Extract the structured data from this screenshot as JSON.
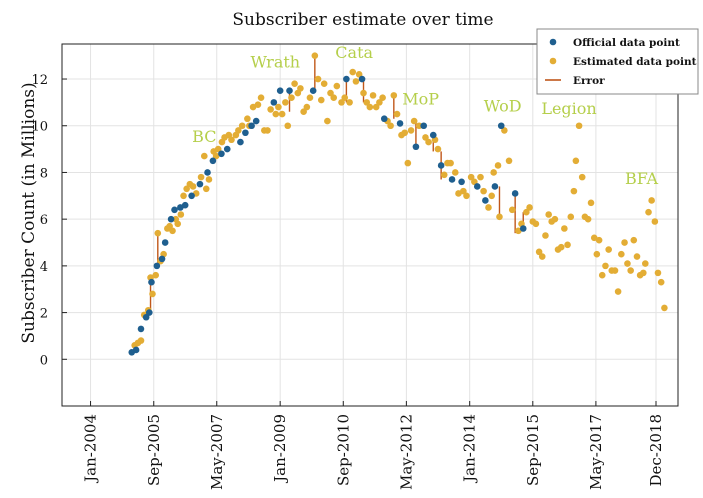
{
  "chart_data": {
    "type": "scatter",
    "title": "Subscriber estimate over time",
    "xlabel": "",
    "ylabel": "Subscriber Count (in Millions)",
    "ylim": [
      -2,
      13.5
    ],
    "yticks": [
      0,
      2,
      4,
      6,
      8,
      10,
      12
    ],
    "xlim": [
      "2003-04-01",
      "2019-07-01"
    ],
    "xticks": [
      {
        "date": "2004-01-01",
        "label": "Jan-2004"
      },
      {
        "date": "2005-09-01",
        "label": "Sep-2005"
      },
      {
        "date": "2007-05-01",
        "label": "May-2007"
      },
      {
        "date": "2009-01-01",
        "label": "Jan-2009"
      },
      {
        "date": "2010-09-01",
        "label": "Sep-2010"
      },
      {
        "date": "2012-05-01",
        "label": "May-2012"
      },
      {
        "date": "2014-01-01",
        "label": "Jan-2014"
      },
      {
        "date": "2015-09-01",
        "label": "Sep-2015"
      },
      {
        "date": "2017-05-01",
        "label": "May-2017"
      },
      {
        "date": "2018-12-01",
        "label": "Dec-2018"
      }
    ],
    "grid": true,
    "legend": {
      "position": "top-right",
      "entries": [
        {
          "label": "Official data point",
          "kind": "official"
        },
        {
          "label": "Estimated data point",
          "kind": "estimated"
        },
        {
          "label": "Error",
          "kind": "error"
        }
      ]
    },
    "colors": {
      "official": "#1f5f8f",
      "estimated": "#e3ad35",
      "error": "#c0571a",
      "annotation": "#b5cf4b"
    },
    "annotations": [
      {
        "text": "BC",
        "date": "2007-01-01",
        "y": 9.3
      },
      {
        "text": "Wrath",
        "date": "2008-11-15",
        "y": 12.5
      },
      {
        "text": "Cata",
        "date": "2010-12-15",
        "y": 12.9
      },
      {
        "text": "MoP",
        "date": "2012-09-15",
        "y": 10.9
      },
      {
        "text": "WoD",
        "date": "2014-11-15",
        "y": 10.6
      },
      {
        "text": "Legion",
        "date": "2016-08-15",
        "y": 10.5
      },
      {
        "text": "BFA",
        "date": "2018-07-15",
        "y": 7.5
      }
    ],
    "series": [
      {
        "name": "Official data point",
        "kind": "official",
        "points": [
          [
            "2005-02-01",
            0.3
          ],
          [
            "2005-03-15",
            0.4
          ],
          [
            "2005-05-01",
            1.3
          ],
          [
            "2005-06-20",
            1.8
          ],
          [
            "2005-07-20",
            2.0
          ],
          [
            "2005-08-10",
            3.3
          ],
          [
            "2005-10-01",
            4.0
          ],
          [
            "2005-11-20",
            4.3
          ],
          [
            "2005-12-20",
            5.0
          ],
          [
            "2006-02-15",
            6.0
          ],
          [
            "2006-03-20",
            6.4
          ],
          [
            "2006-05-15",
            6.5
          ],
          [
            "2006-07-01",
            6.6
          ],
          [
            "2006-09-01",
            7.0
          ],
          [
            "2006-11-20",
            7.5
          ],
          [
            "2007-02-01",
            8.0
          ],
          [
            "2007-03-25",
            8.5
          ],
          [
            "2007-06-15",
            8.8
          ],
          [
            "2007-08-10",
            9.0
          ],
          [
            "2007-12-15",
            9.3
          ],
          [
            "2008-02-01",
            9.7
          ],
          [
            "2008-04-01",
            10.0
          ],
          [
            "2008-05-15",
            10.2
          ],
          [
            "2008-11-01",
            11.0
          ],
          [
            "2009-01-01",
            11.5
          ],
          [
            "2009-04-01",
            11.5
          ],
          [
            "2009-11-15",
            11.5
          ],
          [
            "2010-10-01",
            12.0
          ],
          [
            "2011-03-01",
            12.0
          ],
          [
            "2011-10-01",
            10.3
          ],
          [
            "2012-03-01",
            10.1
          ],
          [
            "2012-08-01",
            9.1
          ],
          [
            "2012-10-15",
            10.0
          ],
          [
            "2013-01-15",
            9.6
          ],
          [
            "2013-04-01",
            8.3
          ],
          [
            "2013-07-15",
            7.7
          ],
          [
            "2013-10-15",
            7.6
          ],
          [
            "2014-03-15",
            7.4
          ],
          [
            "2014-06-01",
            6.8
          ],
          [
            "2014-09-01",
            7.4
          ],
          [
            "2014-11-01",
            10.0
          ],
          [
            "2015-03-15",
            7.1
          ],
          [
            "2015-06-01",
            5.6
          ]
        ]
      },
      {
        "name": "Estimated data point",
        "kind": "estimated",
        "points": [
          [
            "2005-03-01",
            0.6
          ],
          [
            "2005-04-01",
            0.7
          ],
          [
            "2005-05-01",
            0.8
          ],
          [
            "2005-06-01",
            1.9
          ],
          [
            "2005-07-10",
            2.1
          ],
          [
            "2005-08-01",
            3.5
          ],
          [
            "2005-08-20",
            2.8
          ],
          [
            "2005-09-20",
            3.6
          ],
          [
            "2005-10-10",
            5.4
          ],
          [
            "2005-11-05",
            4.2
          ],
          [
            "2005-12-05",
            4.5
          ],
          [
            "2006-01-10",
            5.6
          ],
          [
            "2006-02-01",
            5.7
          ],
          [
            "2006-03-01",
            5.5
          ],
          [
            "2006-04-01",
            6.0
          ],
          [
            "2006-04-20",
            5.8
          ],
          [
            "2006-05-20",
            6.2
          ],
          [
            "2006-06-15",
            7.0
          ],
          [
            "2006-07-15",
            7.3
          ],
          [
            "2006-08-15",
            7.5
          ],
          [
            "2006-09-15",
            7.4
          ],
          [
            "2006-10-15",
            7.1
          ],
          [
            "2006-12-01",
            7.8
          ],
          [
            "2007-01-01",
            8.7
          ],
          [
            "2007-01-20",
            7.3
          ],
          [
            "2007-02-15",
            7.7
          ],
          [
            "2007-04-01",
            8.9
          ],
          [
            "2007-04-25",
            8.7
          ],
          [
            "2007-05-15",
            9.0
          ],
          [
            "2007-06-20",
            9.3
          ],
          [
            "2007-07-15",
            9.5
          ],
          [
            "2007-08-25",
            9.6
          ],
          [
            "2007-09-20",
            9.4
          ],
          [
            "2007-11-01",
            9.6
          ],
          [
            "2007-11-25",
            9.8
          ],
          [
            "2008-01-01",
            10.0
          ],
          [
            "2008-02-20",
            10.3
          ],
          [
            "2008-03-10",
            10.0
          ],
          [
            "2008-04-15",
            10.8
          ],
          [
            "2008-06-01",
            10.9
          ],
          [
            "2008-07-01",
            11.2
          ],
          [
            "2008-08-01",
            9.8
          ],
          [
            "2008-09-01",
            9.8
          ],
          [
            "2008-10-01",
            10.7
          ],
          [
            "2008-11-20",
            10.5
          ],
          [
            "2008-12-15",
            10.8
          ],
          [
            "2009-01-20",
            10.5
          ],
          [
            "2009-02-20",
            11.0
          ],
          [
            "2009-03-15",
            10.0
          ],
          [
            "2009-04-20",
            11.2
          ],
          [
            "2009-05-20",
            11.8
          ],
          [
            "2009-06-20",
            11.4
          ],
          [
            "2009-07-15",
            11.6
          ],
          [
            "2009-08-15",
            10.6
          ],
          [
            "2009-09-15",
            10.8
          ],
          [
            "2009-10-15",
            11.2
          ],
          [
            "2009-12-01",
            13.0
          ],
          [
            "2010-01-01",
            12.0
          ],
          [
            "2010-02-01",
            11.1
          ],
          [
            "2010-03-01",
            11.8
          ],
          [
            "2010-04-01",
            10.2
          ],
          [
            "2010-05-01",
            11.4
          ],
          [
            "2010-06-01",
            11.2
          ],
          [
            "2010-07-01",
            11.7
          ],
          [
            "2010-08-15",
            11.0
          ],
          [
            "2010-09-15",
            11.2
          ],
          [
            "2010-11-01",
            11.0
          ],
          [
            "2010-12-01",
            12.3
          ],
          [
            "2011-01-01",
            11.9
          ],
          [
            "2011-02-01",
            12.2
          ],
          [
            "2011-03-15",
            11.4
          ],
          [
            "2011-04-15",
            11.0
          ],
          [
            "2011-05-15",
            10.8
          ],
          [
            "2011-06-15",
            11.3
          ],
          [
            "2011-07-15",
            10.8
          ],
          [
            "2011-08-15",
            11.0
          ],
          [
            "2011-09-15",
            11.2
          ],
          [
            "2011-11-01",
            10.2
          ],
          [
            "2011-12-01",
            10.0
          ],
          [
            "2012-01-01",
            11.3
          ],
          [
            "2012-02-01",
            10.5
          ],
          [
            "2012-03-15",
            9.6
          ],
          [
            "2012-04-15",
            9.7
          ],
          [
            "2012-05-15",
            8.4
          ],
          [
            "2012-06-15",
            9.8
          ],
          [
            "2012-07-15",
            10.2
          ],
          [
            "2012-09-01",
            10.0
          ],
          [
            "2012-11-01",
            9.5
          ],
          [
            "2012-12-01",
            9.3
          ],
          [
            "2013-02-01",
            9.4
          ],
          [
            "2013-03-01",
            9.0
          ],
          [
            "2013-05-01",
            7.9
          ],
          [
            "2013-06-01",
            8.4
          ],
          [
            "2013-07-01",
            8.4
          ],
          [
            "2013-08-15",
            8.0
          ],
          [
            "2013-09-15",
            7.1
          ],
          [
            "2013-11-01",
            7.2
          ],
          [
            "2013-12-01",
            7.0
          ],
          [
            "2014-01-15",
            7.8
          ],
          [
            "2014-02-15",
            7.6
          ],
          [
            "2014-04-15",
            7.8
          ],
          [
            "2014-05-15",
            7.2
          ],
          [
            "2014-07-01",
            6.5
          ],
          [
            "2014-08-01",
            7.0
          ],
          [
            "2014-08-20",
            8.0
          ],
          [
            "2014-10-01",
            8.3
          ],
          [
            "2014-10-15",
            6.1
          ],
          [
            "2014-12-01",
            9.8
          ],
          [
            "2015-01-15",
            8.5
          ],
          [
            "2015-02-15",
            6.4
          ],
          [
            "2015-04-15",
            5.5
          ],
          [
            "2015-05-15",
            5.8
          ],
          [
            "2015-07-01",
            6.3
          ],
          [
            "2015-08-01",
            6.5
          ],
          [
            "2015-09-01",
            5.9
          ],
          [
            "2015-10-01",
            5.8
          ],
          [
            "2015-11-01",
            4.6
          ],
          [
            "2015-12-01",
            4.4
          ],
          [
            "2016-01-01",
            5.3
          ],
          [
            "2016-02-01",
            6.2
          ],
          [
            "2016-03-01",
            5.9
          ],
          [
            "2016-04-01",
            6.0
          ],
          [
            "2016-05-01",
            4.7
          ],
          [
            "2016-06-01",
            4.8
          ],
          [
            "2016-07-01",
            5.6
          ],
          [
            "2016-08-01",
            4.9
          ],
          [
            "2016-09-01",
            6.1
          ],
          [
            "2016-10-01",
            7.2
          ],
          [
            "2016-10-20",
            8.5
          ],
          [
            "2016-11-20",
            10.0
          ],
          [
            "2016-12-20",
            7.8
          ],
          [
            "2017-01-15",
            6.1
          ],
          [
            "2017-02-15",
            6.0
          ],
          [
            "2017-03-15",
            6.7
          ],
          [
            "2017-04-15",
            5.2
          ],
          [
            "2017-05-10",
            4.5
          ],
          [
            "2017-06-01",
            5.1
          ],
          [
            "2017-07-01",
            3.6
          ],
          [
            "2017-08-01",
            4.0
          ],
          [
            "2017-09-01",
            4.7
          ],
          [
            "2017-10-01",
            3.8
          ],
          [
            "2017-11-01",
            3.8
          ],
          [
            "2017-12-01",
            2.9
          ],
          [
            "2018-01-01",
            4.5
          ],
          [
            "2018-02-01",
            5.0
          ],
          [
            "2018-03-01",
            4.1
          ],
          [
            "2018-04-01",
            3.8
          ],
          [
            "2018-05-01",
            5.1
          ],
          [
            "2018-06-01",
            4.4
          ],
          [
            "2018-07-01",
            3.6
          ],
          [
            "2018-08-01",
            3.7
          ],
          [
            "2018-08-20",
            4.1
          ],
          [
            "2018-09-20",
            6.3
          ],
          [
            "2018-10-20",
            6.8
          ],
          [
            "2018-11-20",
            5.9
          ],
          [
            "2018-12-20",
            3.7
          ],
          [
            "2019-01-20",
            3.3
          ],
          [
            "2019-02-20",
            2.2
          ]
        ]
      }
    ],
    "errors": [
      {
        "date": "2005-10-10",
        "from": 4.0,
        "to": 5.4
      },
      {
        "date": "2005-08-01",
        "from": 2.0,
        "to": 3.5
      },
      {
        "date": "2009-04-01",
        "from": 10.6,
        "to": 11.5
      },
      {
        "date": "2009-12-01",
        "from": 11.5,
        "to": 13.0
      },
      {
        "date": "2010-10-01",
        "from": 11.0,
        "to": 12.0
      },
      {
        "date": "2011-03-15",
        "from": 11.0,
        "to": 12.0
      },
      {
        "date": "2012-01-01",
        "from": 10.3,
        "to": 11.3
      },
      {
        "date": "2012-08-01",
        "from": 9.1,
        "to": 10.2
      },
      {
        "date": "2013-01-15",
        "from": 8.9,
        "to": 9.6
      },
      {
        "date": "2013-04-01",
        "from": 7.7,
        "to": 8.9
      },
      {
        "date": "2014-10-15",
        "from": 6.1,
        "to": 7.4
      },
      {
        "date": "2015-03-15",
        "from": 5.4,
        "to": 7.1
      },
      {
        "date": "2015-06-01",
        "from": 5.6,
        "to": 6.3
      }
    ]
  }
}
